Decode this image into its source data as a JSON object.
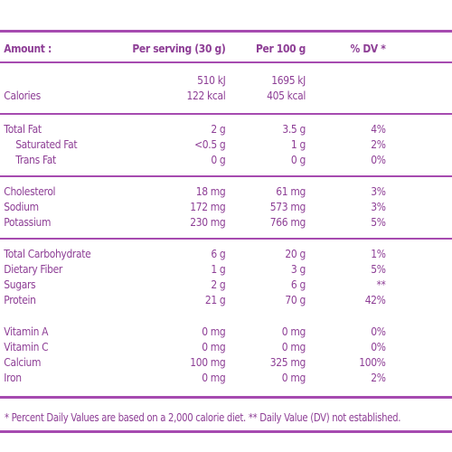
{
  "header": {
    "amount": "Amount :",
    "per_serving": "Per serving (30 g)",
    "per_100g": "Per 100 g",
    "dv": "% DV *"
  },
  "energy": {
    "kj_serving": "510 kJ",
    "kj_100g": "1695 kJ",
    "label": "Calories",
    "kcal_serving": "122 kcal",
    "kcal_100g": "405 kcal"
  },
  "rows": [
    {
      "name": "Total Fat",
      "serving": "2 g",
      "per100": "3.5 g",
      "dv": "4%"
    },
    {
      "name": "Saturated Fat",
      "serving": "<0.5 g",
      "per100": "1 g",
      "dv": "2%"
    },
    {
      "name": "Trans Fat",
      "serving": "0 g",
      "per100": "0 g",
      "dv": "0%"
    },
    {
      "name": "Cholesterol",
      "serving": "18 mg",
      "per100": "61 mg",
      "dv": "3%"
    },
    {
      "name": "Sodium",
      "serving": "172 mg",
      "per100": "573 mg",
      "dv": "3%"
    },
    {
      "name": "Potassium",
      "serving": "230 mg",
      "per100": "766 mg",
      "dv": "5%"
    },
    {
      "name": "Total Carbohydrate",
      "serving": "6 g",
      "per100": "20 g",
      "dv": "1%"
    },
    {
      "name": "Dietary Fiber",
      "serving": "1 g",
      "per100": "3 g",
      "dv": "5%"
    },
    {
      "name": "Sugars",
      "serving": "2 g",
      "per100": "6 g",
      "dv": "**"
    },
    {
      "name": "Protein",
      "serving": "21 g",
      "per100": "70 g",
      "dv": "42%"
    },
    {
      "name": "Vitamin A",
      "serving": "0 mg",
      "per100": "0 mg",
      "dv": "0%"
    },
    {
      "name": "Vitamin C",
      "serving": "0 mg",
      "per100": "0 mg",
      "dv": "0%"
    },
    {
      "name": "Calcium",
      "serving": "100 mg",
      "per100": "325 mg",
      "dv": "100%"
    },
    {
      "name": "Iron",
      "serving": "0 mg",
      "per100": "0 mg",
      "dv": "2%"
    }
  ],
  "footnote": "* Percent Daily Values are based on a 2,000 calorie diet. ** Daily Value (DV) not established.",
  "colors": {
    "text": "#8e3f96",
    "rule": "#a64bb0",
    "background": "#ffffff"
  }
}
